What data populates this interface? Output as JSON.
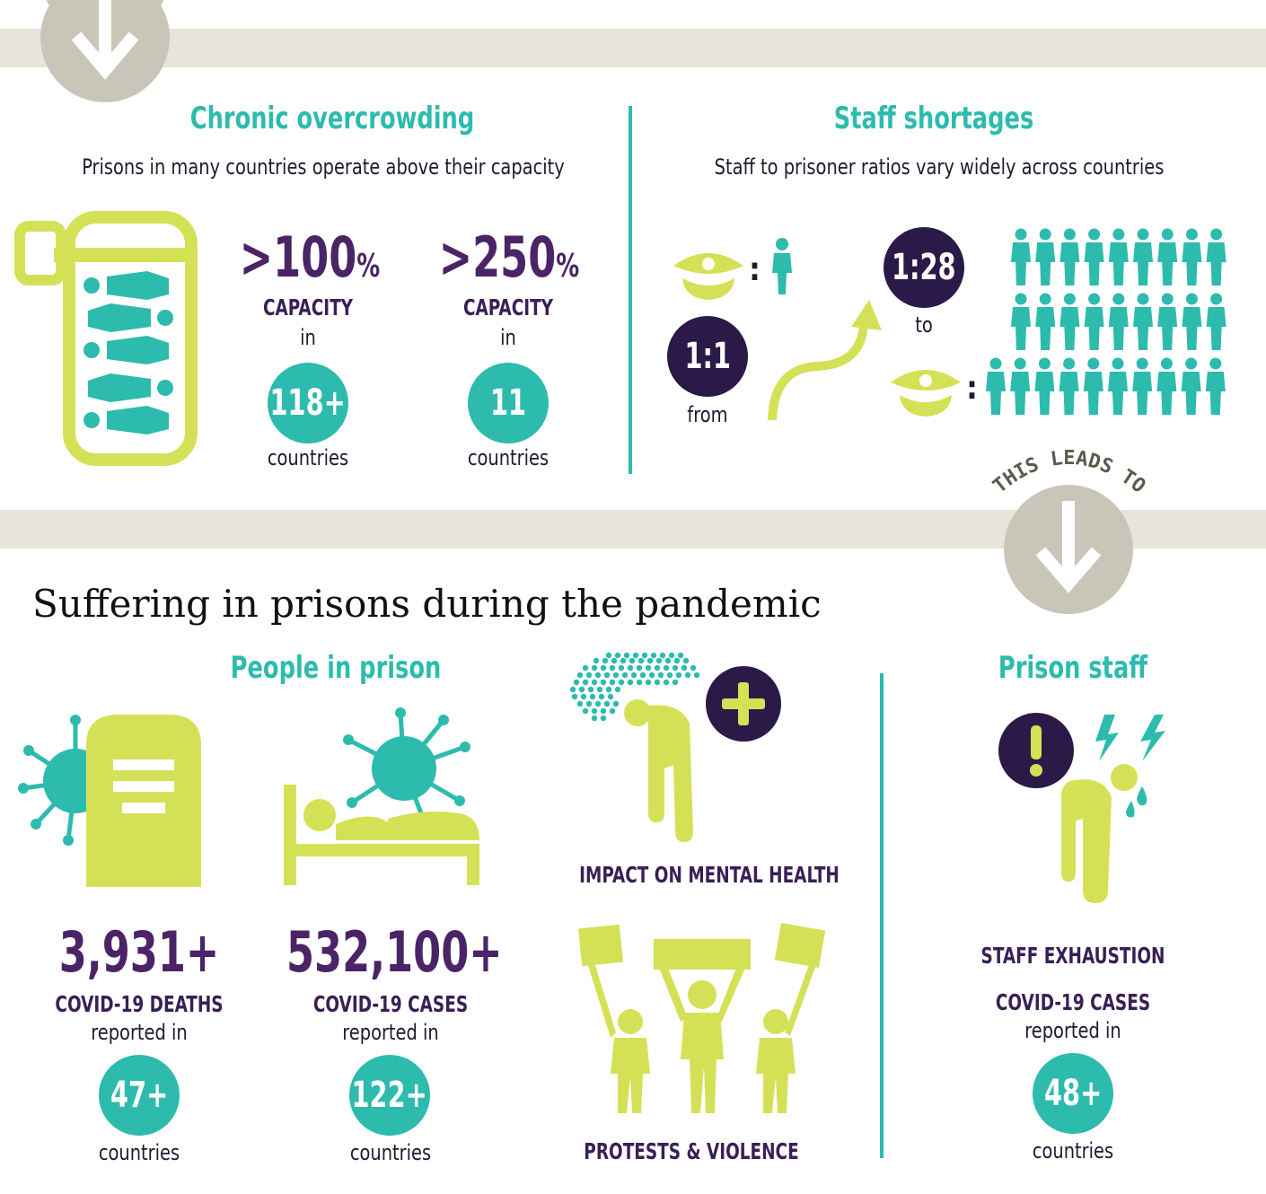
{
  "colors": {
    "teal": "#2dbbad",
    "lime": "#d4e157",
    "purple": "#4a2466",
    "dark_purple": "#2b1a47",
    "band": "#e9e4da",
    "arrow_gray": "#c9c6b9"
  },
  "overcrowding": {
    "title": "Chronic overcrowding",
    "subtitle": "Prisons in many countries operate above their capacity",
    "stats": [
      {
        "value": ">100",
        "unit": "%",
        "label": "CAPACITY",
        "connector": "in",
        "count": "118+",
        "count_label": "countries"
      },
      {
        "value": ">250",
        "unit": "%",
        "label": "CAPACITY",
        "connector": "in",
        "count": "11",
        "count_label": "countries"
      }
    ]
  },
  "staff_shortages": {
    "title": "Staff shortages",
    "subtitle": "Staff to prisoner ratios vary widely across countries",
    "colon": ":",
    "from_ratio": "1:1",
    "from_label": "from",
    "to_ratio": "1:28",
    "to_label": "to",
    "leads_to": "THIS LEADS TO"
  },
  "pandemic": {
    "title": "Suffering in prisons during the pandemic",
    "people_title": "People in prison",
    "deaths": {
      "value": "3,931+",
      "label": "COVID-19 DEATHS",
      "sub": "reported in",
      "count": "47+",
      "count_label": "countries"
    },
    "cases": {
      "value": "532,100+",
      "label": "COVID-19 CASES",
      "sub": "reported in",
      "count": "122+",
      "count_label": "countries"
    },
    "mental_health": "IMPACT ON MENTAL HEALTH",
    "protests": "PROTESTS & VIOLENCE",
    "staff_title": "Prison staff",
    "staff_exhaustion": "STAFF EXHAUSTION",
    "staff_cases": {
      "label": "COVID-19 CASES",
      "sub": "reported in",
      "count": "48+",
      "count_label": "countries"
    }
  }
}
